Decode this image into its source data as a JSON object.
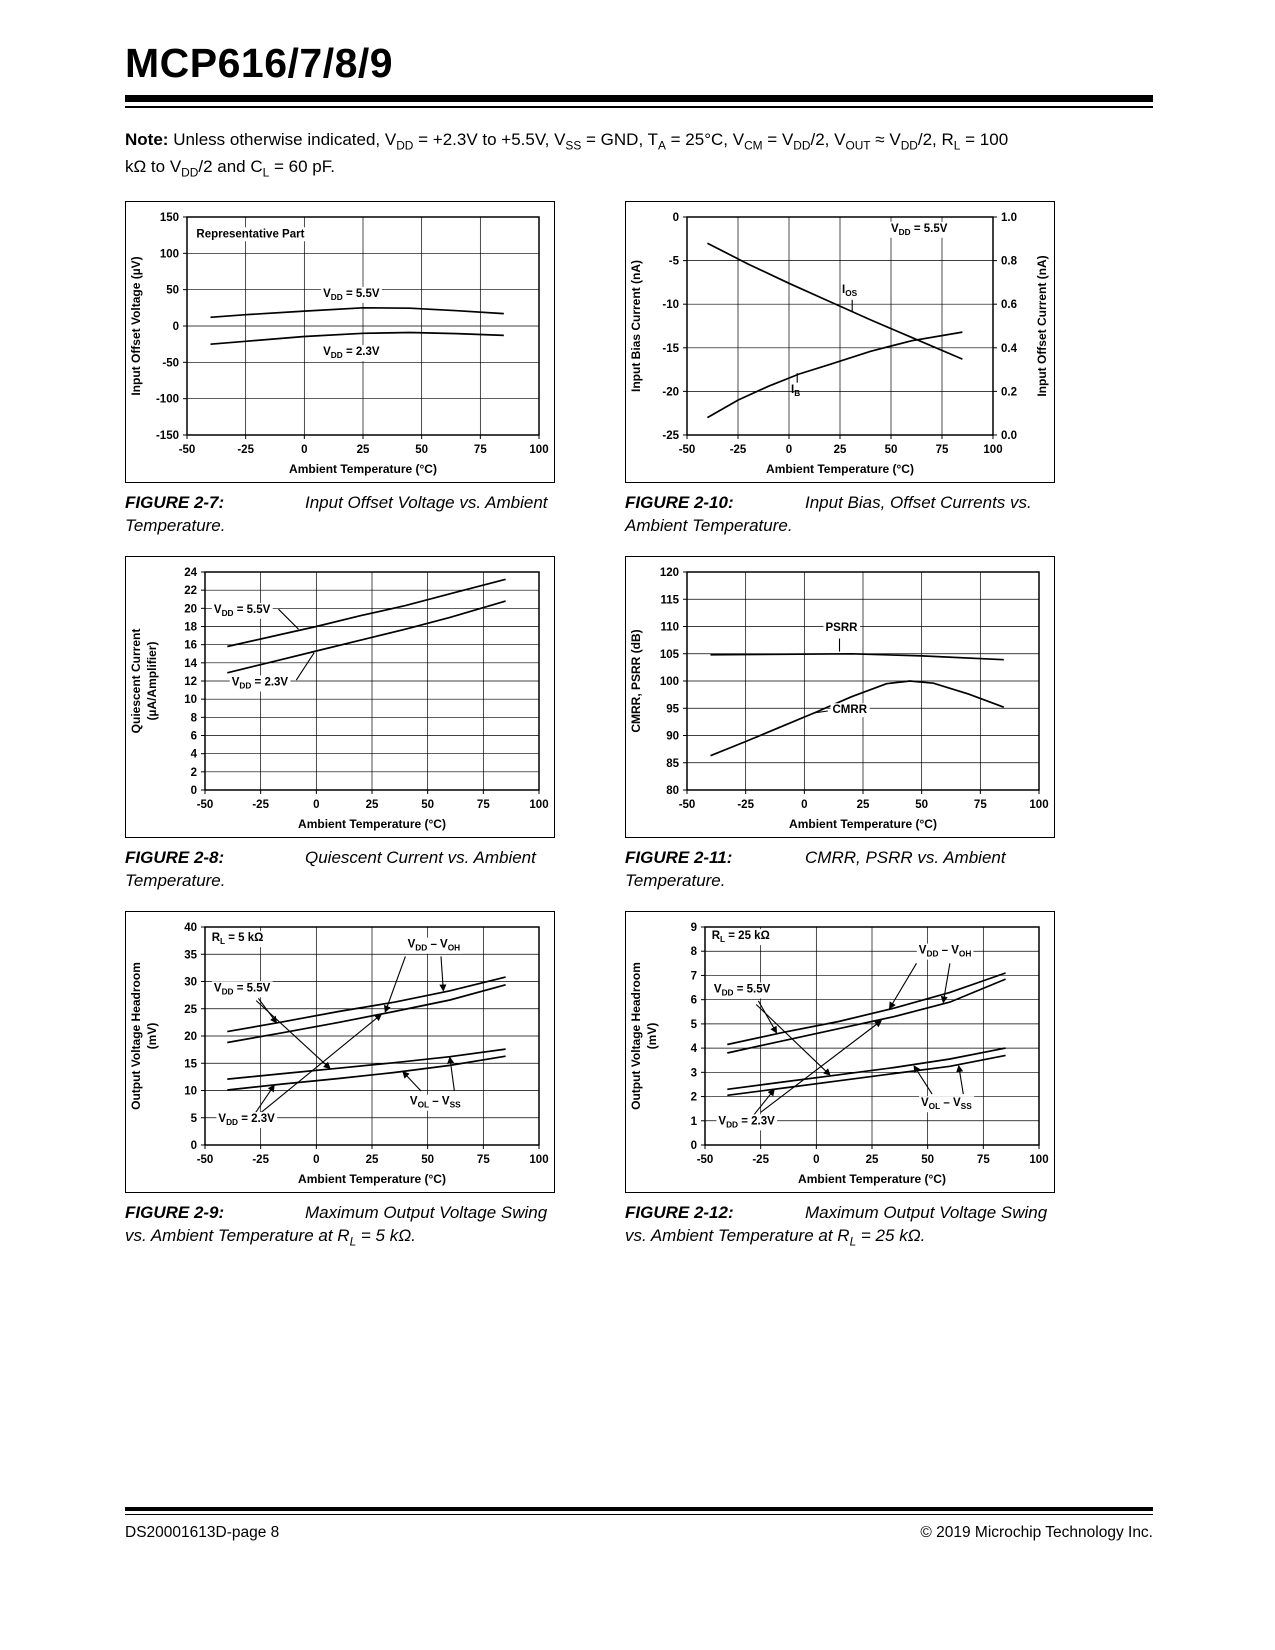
{
  "page": {
    "title": "MCP616/7/8/9",
    "note": {
      "label": "Note:",
      "text": "Unless otherwise indicated, V~DD~ = +2.3V to +5.5V, V~SS~ = GND, T~A~ = 25°C, V~CM~ = V~DD~/2, V~OUT~ ≈ V~DD~/2, R~L~ = 100 kΩ to V~DD~/2 and C~L~ = 60 pF."
    },
    "footer": {
      "left": "DS20001613D-page 8",
      "right": "© 2019 Microchip Technology Inc."
    }
  },
  "chart_data": [
    {
      "id": "2-7",
      "caption_label": "FIGURE 2-7:",
      "caption_text": "Input Offset Voltage vs. Ambient Temperature.",
      "chart": {
        "type": "line",
        "xlabel": "Ambient Temperature (°C)",
        "ylabel": "Input Offset Voltage (µV)",
        "xlim": [
          -50,
          100
        ],
        "xticks": [
          -50,
          -25,
          0,
          25,
          50,
          75,
          100
        ],
        "ylim": [
          -150,
          150
        ],
        "yticks": [
          -150,
          -100,
          -50,
          0,
          50,
          100,
          150
        ],
        "grid": true,
        "series": [
          {
            "name": "VDD = 5.5V",
            "points": [
              [
                -40,
                12
              ],
              [
                -25,
                15.5
              ],
              [
                0,
                20.5
              ],
              [
                25,
                25
              ],
              [
                45,
                24.5
              ],
              [
                65,
                21
              ],
              [
                85,
                17
              ]
            ]
          },
          {
            "name": "VDD = 2.3V",
            "points": [
              [
                -40,
                -25
              ],
              [
                -25,
                -21
              ],
              [
                0,
                -14.5
              ],
              [
                25,
                -10
              ],
              [
                45,
                -9
              ],
              [
                65,
                -10.5
              ],
              [
                85,
                -13
              ]
            ]
          }
        ],
        "annotations": [
          {
            "x": -46,
            "y": 122,
            "text": "Representative Part",
            "bg": true
          },
          {
            "x": 8,
            "y": 40,
            "text": "V~DD~ = 5.5V",
            "bg": true
          },
          {
            "x": 8,
            "y": -40,
            "text": "V~DD~ = 2.3V",
            "bg": true
          }
        ],
        "leaders": []
      }
    },
    {
      "id": "2-10",
      "caption_label": "FIGURE 2-10:",
      "caption_text": "Input Bias, Offset Currents vs. Ambient Temperature.",
      "chart": {
        "type": "line",
        "xlabel": "Ambient Temperature (°C)",
        "ylabel": "Input Bias Current (nA)",
        "y2label": "Input Offset Current (nA)",
        "xlim": [
          -50,
          100
        ],
        "xticks": [
          -50,
          -25,
          0,
          25,
          50,
          75,
          100
        ],
        "ylim": [
          -25,
          0
        ],
        "yticks": [
          0,
          -5,
          -10,
          -15,
          -20,
          -25
        ],
        "y2lim": [
          0,
          1
        ],
        "y2ticks": [
          1.0,
          0.8,
          0.6,
          0.4,
          0.2,
          0.0
        ],
        "y2tick_labels": [
          "1.0",
          "0.8",
          "0.6",
          "0.4",
          "0.2",
          "0.0"
        ],
        "grid": true,
        "series": [
          {
            "name": "IOS",
            "points": [
              [
                -40,
                -3
              ],
              [
                -20,
                -5.4
              ],
              [
                0,
                -7.6
              ],
              [
                20,
                -9.7
              ],
              [
                40,
                -11.8
              ],
              [
                60,
                -13.8
              ],
              [
                85,
                -16.3
              ]
            ]
          },
          {
            "name": "IB",
            "points": [
              [
                -40,
                -23
              ],
              [
                -25,
                -21
              ],
              [
                -10,
                -19.4
              ],
              [
                5,
                -18
              ],
              [
                20,
                -16.9
              ],
              [
                40,
                -15.4
              ],
              [
                60,
                -14.2
              ],
              [
                85,
                -13.2
              ]
            ]
          }
        ],
        "annotations": [
          {
            "x": 50,
            "y": -1.7,
            "text": "V~DD~ = 5.5V",
            "bg": true
          },
          {
            "x": 26,
            "y": -8.7,
            "text": "I~OS~"
          },
          {
            "x": 1,
            "y": -20.2,
            "text": "I~B~"
          }
        ],
        "leaders": [
          [
            31,
            -9.5,
            31,
            -10.85,
            0
          ],
          [
            4,
            -19.0,
            4,
            -17.9,
            0
          ]
        ]
      }
    },
    {
      "id": "2-8",
      "caption_label": "FIGURE 2-8:",
      "caption_text": "Quiescent Current vs. Ambient Temperature.",
      "chart": {
        "type": "line",
        "xlabel": "Ambient Temperature (°C)",
        "ylabel": "Quiescent Current\n(µA/Amplifier)",
        "xlim": [
          -50,
          100
        ],
        "xticks": [
          -50,
          -25,
          0,
          25,
          50,
          75,
          100
        ],
        "ylim": [
          0,
          24
        ],
        "yticks": [
          0,
          2,
          4,
          6,
          8,
          10,
          12,
          14,
          16,
          18,
          20,
          22,
          24
        ],
        "grid": true,
        "series": [
          {
            "name": "VDD = 5.5V",
            "points": [
              [
                -40,
                15.8
              ],
              [
                -20,
                16.9
              ],
              [
                0,
                18
              ],
              [
                20,
                19.2
              ],
              [
                40,
                20.3
              ],
              [
                60,
                21.6
              ],
              [
                85,
                23.2
              ]
            ]
          },
          {
            "name": "VDD = 2.3V",
            "points": [
              [
                -40,
                12.9
              ],
              [
                -20,
                14.1
              ],
              [
                0,
                15.3
              ],
              [
                20,
                16.5
              ],
              [
                40,
                17.7
              ],
              [
                60,
                19
              ],
              [
                85,
                20.8
              ]
            ]
          }
        ],
        "annotations": [
          {
            "x": -46,
            "y": 19.5,
            "text": "V~DD~ = 5.5V",
            "bg": true
          },
          {
            "x": -38,
            "y": 11.5,
            "text": "V~DD~ = 2.3V",
            "bg": true
          }
        ],
        "leaders": [
          [
            -17,
            19.9,
            -8,
            17.7,
            0
          ],
          [
            -9,
            12.1,
            -1,
            15.1,
            0
          ]
        ]
      }
    },
    {
      "id": "2-11",
      "caption_label": "FIGURE 2-11:",
      "caption_text": "CMRR, PSRR vs. Ambient Temperature.",
      "chart": {
        "type": "line",
        "xlabel": "Ambient Temperature (°C)",
        "ylabel": "CMRR, PSRR (dB)",
        "xlim": [
          -50,
          100
        ],
        "xticks": [
          -50,
          -25,
          0,
          25,
          50,
          75,
          100
        ],
        "ylim": [
          80,
          120
        ],
        "yticks": [
          80,
          85,
          90,
          95,
          100,
          105,
          110,
          115,
          120
        ],
        "grid": true,
        "series": [
          {
            "name": "PSRR",
            "points": [
              [
                -40,
                104.8
              ],
              [
                -10,
                104.9
              ],
              [
                20,
                105
              ],
              [
                50,
                104.6
              ],
              [
                85,
                103.9
              ]
            ]
          },
          {
            "name": "CMRR",
            "points": [
              [
                -40,
                86.3
              ],
              [
                -25,
                88.9
              ],
              [
                -10,
                91.6
              ],
              [
                5,
                94.3
              ],
              [
                20,
                97.1
              ],
              [
                35,
                99.5
              ],
              [
                45,
                100
              ],
              [
                55,
                99.6
              ],
              [
                70,
                97.6
              ],
              [
                85,
                95.2
              ]
            ]
          }
        ],
        "annotations": [
          {
            "x": 9,
            "y": 109.2,
            "text": "PSRR",
            "bg": true
          },
          {
            "x": 12,
            "y": 94.1,
            "text": "CMRR",
            "bg": true
          }
        ],
        "leaders": [
          [
            15,
            107.8,
            15,
            105.4,
            0
          ],
          [
            10,
            94.5,
            4,
            94.15,
            0
          ]
        ]
      }
    },
    {
      "id": "2-9",
      "caption_label": "FIGURE 2-9:",
      "caption_text": "Maximum Output Voltage Swing vs. Ambient Temperature at R~L~ = 5 kΩ.",
      "chart": {
        "type": "line",
        "xlabel": "Ambient Temperature (°C)",
        "ylabel": "Output Voltage Headroom\n(mV)",
        "xlim": [
          -50,
          100
        ],
        "xticks": [
          -50,
          -25,
          0,
          25,
          50,
          75,
          100
        ],
        "ylim": [
          0,
          40
        ],
        "yticks": [
          0,
          5,
          10,
          15,
          20,
          25,
          30,
          35,
          40
        ],
        "grid": true,
        "series": [
          {
            "name": "VDD - VOH (VDD = 5.5V)",
            "points": [
              [
                -40,
                20.8
              ],
              [
                -15,
                22.6
              ],
              [
                10,
                24.5
              ],
              [
                35,
                26.2
              ],
              [
                60,
                28.3
              ],
              [
                85,
                30.8
              ]
            ]
          },
          {
            "name": "VDD - VOH (VDD = 2.3V)",
            "points": [
              [
                -40,
                18.8
              ],
              [
                -15,
                20.6
              ],
              [
                10,
                22.5
              ],
              [
                35,
                24.5
              ],
              [
                60,
                26.6
              ],
              [
                85,
                29.4
              ]
            ]
          },
          {
            "name": "VOL - VSS (VDD = 5.5V)",
            "points": [
              [
                -40,
                12.1
              ],
              [
                -15,
                13.1
              ],
              [
                10,
                14.1
              ],
              [
                35,
                15.1
              ],
              [
                60,
                16.2
              ],
              [
                85,
                17.6
              ]
            ]
          },
          {
            "name": "VOL - VSS (VDD = 2.3V)",
            "points": [
              [
                -40,
                10.1
              ],
              [
                -15,
                11.2
              ],
              [
                10,
                12.2
              ],
              [
                35,
                13.3
              ],
              [
                60,
                14.6
              ],
              [
                85,
                16.3
              ]
            ]
          }
        ],
        "annotations": [
          {
            "x": -47,
            "y": 37.4,
            "text": "R~L~ = 5 kΩ",
            "bg": true
          },
          {
            "x": -46,
            "y": 28.2,
            "text": "V~DD~ = 5.5V",
            "bg": true
          },
          {
            "x": -44,
            "y": 4.2,
            "text": "V~DD~ = 2.3V",
            "bg": true
          },
          {
            "x": 41,
            "y": 36.2,
            "text": "V~DD~ – V~OH~",
            "bg": true
          },
          {
            "x": 42,
            "y": 7.4,
            "text": "V~OL~ – V~SS~",
            "bg": true
          }
        ],
        "leaders": [
          [
            40,
            34.6,
            31,
            24.5,
            1
          ],
          [
            56,
            34.6,
            57,
            28.4,
            1
          ],
          [
            47,
            9.9,
            39,
            13.4,
            1
          ],
          [
            62,
            9.9,
            60,
            16.0,
            1
          ],
          [
            -26,
            26.9,
            -18,
            22.5,
            1
          ],
          [
            -27,
            26.5,
            6,
            14.1,
            1
          ],
          [
            -28,
            5.5,
            -19,
            10.9,
            1
          ],
          [
            -25,
            5.9,
            29,
            23.9,
            1
          ]
        ]
      }
    },
    {
      "id": "2-12",
      "caption_label": "FIGURE 2-12:",
      "caption_text": "Maximum Output Voltage Swing vs. Ambient Temperature at R~L~ = 25 kΩ.",
      "chart": {
        "type": "line",
        "xlabel": "Ambient Temperature (°C)",
        "ylabel": "Output Voltage Headroom\n(mV)",
        "xlim": [
          -50,
          100
        ],
        "xticks": [
          -50,
          -25,
          0,
          25,
          50,
          75,
          100
        ],
        "ylim": [
          0,
          9
        ],
        "yticks": [
          0,
          1,
          2,
          3,
          4,
          5,
          6,
          7,
          8,
          9
        ],
        "grid": true,
        "series": [
          {
            "name": "VDD - VOH (VDD = 5.5V)",
            "points": [
              [
                -40,
                4.15
              ],
              [
                -15,
                4.65
              ],
              [
                10,
                5.1
              ],
              [
                35,
                5.65
              ],
              [
                60,
                6.3
              ],
              [
                85,
                7.1
              ]
            ]
          },
          {
            "name": "VDD - VOH (VDD = 2.3V)",
            "points": [
              [
                -40,
                3.8
              ],
              [
                -15,
                4.3
              ],
              [
                10,
                4.8
              ],
              [
                35,
                5.3
              ],
              [
                60,
                5.9
              ],
              [
                85,
                6.85
              ]
            ]
          },
          {
            "name": "VOL - VSS (VDD = 5.5V)",
            "points": [
              [
                -40,
                2.3
              ],
              [
                -15,
                2.6
              ],
              [
                10,
                2.9
              ],
              [
                35,
                3.2
              ],
              [
                60,
                3.55
              ],
              [
                85,
                4.0
              ]
            ]
          },
          {
            "name": "VOL - VSS (VDD = 2.3V)",
            "points": [
              [
                -40,
                2.05
              ],
              [
                -15,
                2.35
              ],
              [
                10,
                2.65
              ],
              [
                35,
                2.95
              ],
              [
                60,
                3.25
              ],
              [
                85,
                3.7
              ]
            ]
          }
        ],
        "annotations": [
          {
            "x": -47,
            "y": 8.5,
            "text": "R~L~ = 25 kΩ",
            "bg": true
          },
          {
            "x": -46,
            "y": 6.3,
            "text": "V~DD~ = 5.5V",
            "bg": true
          },
          {
            "x": -44,
            "y": 0.85,
            "text": "V~DD~ = 2.3V",
            "bg": true
          },
          {
            "x": 46,
            "y": 7.9,
            "text": "V~DD~ – V~OH~",
            "bg": true
          },
          {
            "x": 47,
            "y": 1.6,
            "text": "V~OL~ – V~SS~",
            "bg": true
          }
        ],
        "leaders": [
          [
            45,
            7.5,
            33,
            5.65,
            1
          ],
          [
            60,
            7.5,
            57,
            5.9,
            1
          ],
          [
            52,
            2.1,
            44,
            3.25,
            1
          ],
          [
            66,
            2.1,
            64,
            3.25,
            1
          ],
          [
            -26,
            5.95,
            -18,
            4.65,
            1
          ],
          [
            -27,
            5.8,
            6,
            2.9,
            1
          ],
          [
            -28,
            1.25,
            -19,
            2.28,
            1
          ],
          [
            -25,
            1.35,
            29,
            5.12,
            1
          ]
        ]
      }
    }
  ]
}
